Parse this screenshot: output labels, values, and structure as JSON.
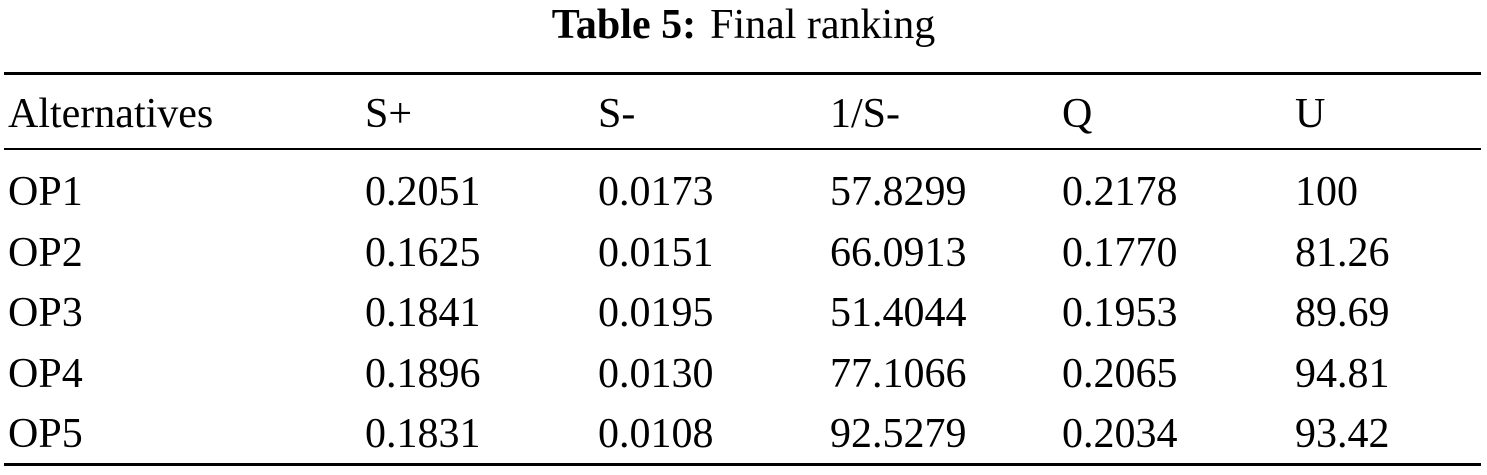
{
  "caption": {
    "label": "Table 5:",
    "text": "Final ranking"
  },
  "table": {
    "header": [
      "Alternatives",
      "S+",
      "S-",
      "1/S-",
      "Q",
      "U"
    ],
    "rows": [
      [
        "OP1",
        "0.2051",
        "0.0173",
        "57.8299",
        "0.2178",
        "100"
      ],
      [
        "OP2",
        "0.1625",
        "0.0151",
        "66.0913",
        "0.1770",
        "81.26"
      ],
      [
        "OP3",
        "0.1841",
        "0.0195",
        "51.4044",
        "0.1953",
        "89.69"
      ],
      [
        "OP4",
        "0.1896",
        "0.0130",
        "77.1066",
        "0.2065",
        "94.81"
      ],
      [
        "OP5",
        "0.1831",
        "0.0108",
        "92.5279",
        "0.2034",
        "93.42"
      ]
    ]
  }
}
